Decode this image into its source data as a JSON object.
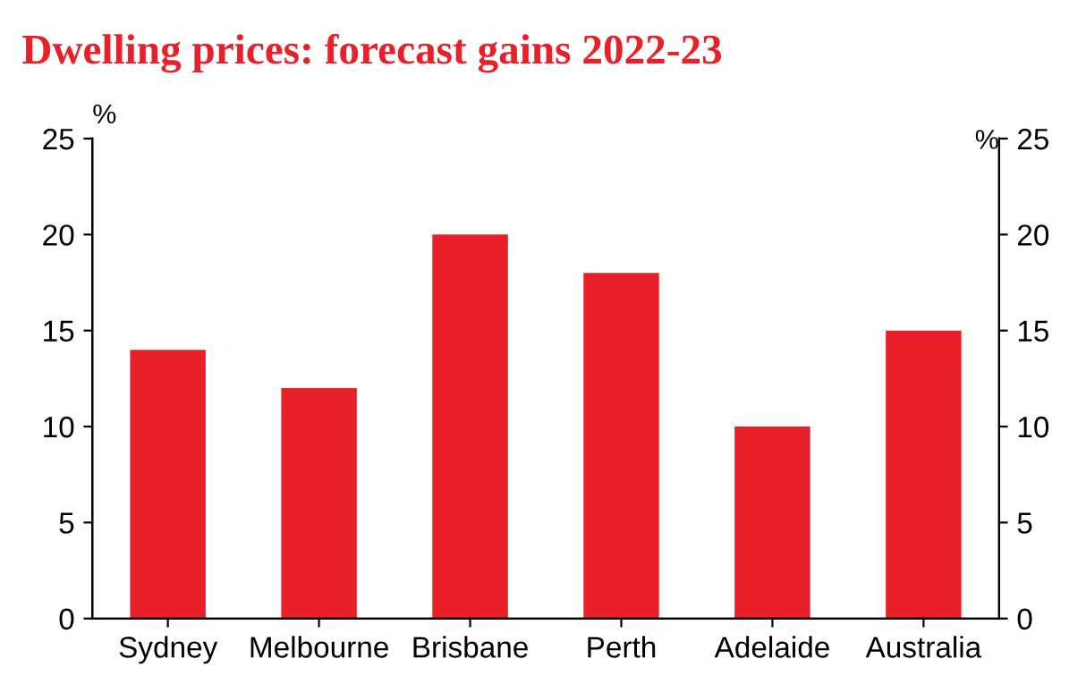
{
  "chart_data": {
    "type": "bar",
    "title": "Dwelling prices: forecast gains 2022-23",
    "categories": [
      "Sydney",
      "Melbourne",
      "Brisbane",
      "Perth",
      "Adelaide",
      "Australia"
    ],
    "values": [
      14,
      12,
      20,
      18,
      10,
      15
    ],
    "color": "#e8202a",
    "ylabel": "%",
    "y2label": "%",
    "ylim": [
      0,
      25
    ],
    "yticks": [
      0,
      5,
      10,
      15,
      20,
      25
    ],
    "y2lim": [
      0,
      25
    ],
    "y2ticks": [
      0,
      5,
      10,
      15,
      20,
      25
    ],
    "grid": false,
    "legend": false
  }
}
